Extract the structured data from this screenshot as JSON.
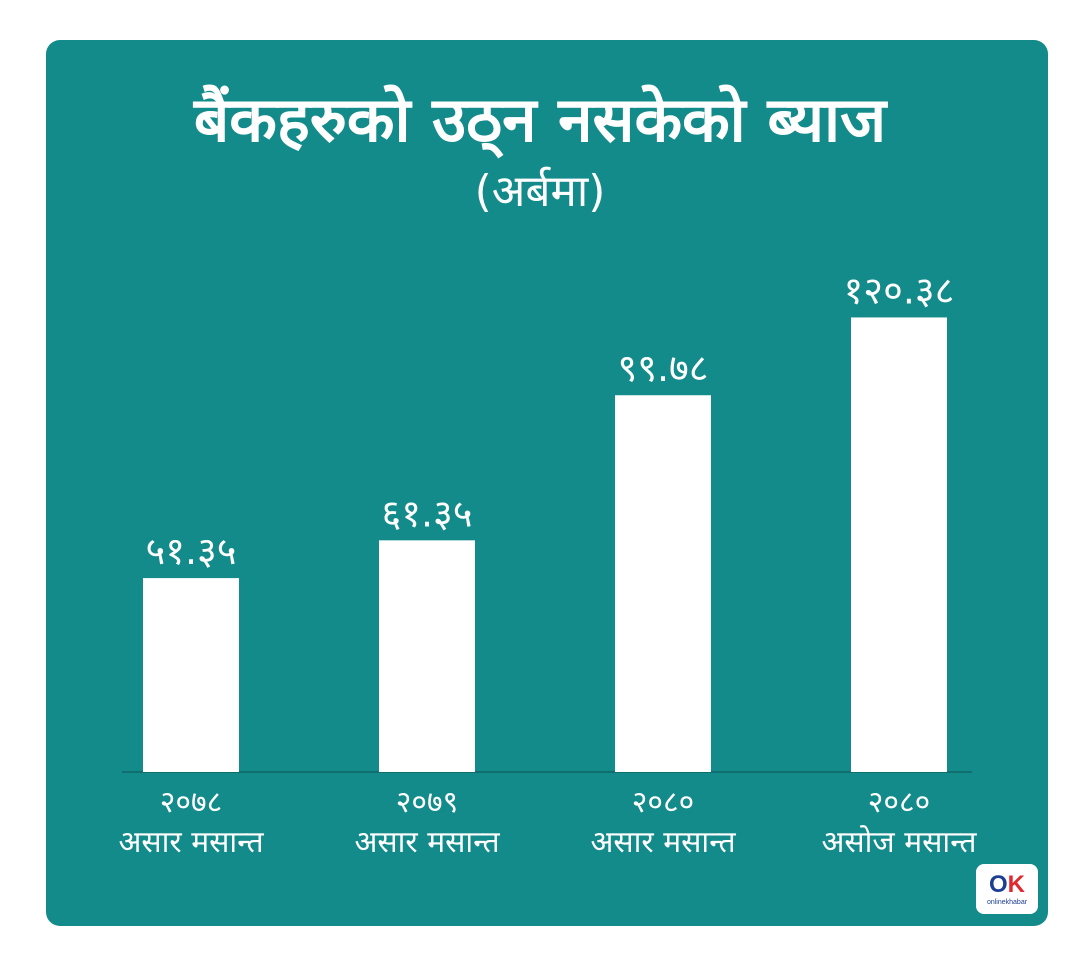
{
  "chart_data": {
    "type": "bar",
    "title": "बैंकहरुको उठ्न नसकेको ब्याज",
    "subtitle": "(अर्बमा)",
    "categories": [
      [
        "२०७८",
        "असार मसान्त"
      ],
      [
        "२०७९",
        "असार मसान्त"
      ],
      [
        "२०८०",
        "असार मसान्त"
      ],
      [
        "२०८०",
        "असोज मसान्त"
      ]
    ],
    "values": [
      51.35,
      61.35,
      99.78,
      120.38
    ],
    "value_labels": [
      "५१.३५",
      "६१.३५",
      "९९.७८",
      "१२०.३८"
    ],
    "ylim": [
      0,
      125
    ],
    "grid": false,
    "legend": "none"
  },
  "colors": {
    "background": "#138b8a",
    "bar": "#ffffff",
    "text": "#ffffff",
    "axis": "#0f6e6e"
  },
  "logo": {
    "mark_o": "O",
    "mark_k": "K",
    "text": "onlinekhabar"
  }
}
